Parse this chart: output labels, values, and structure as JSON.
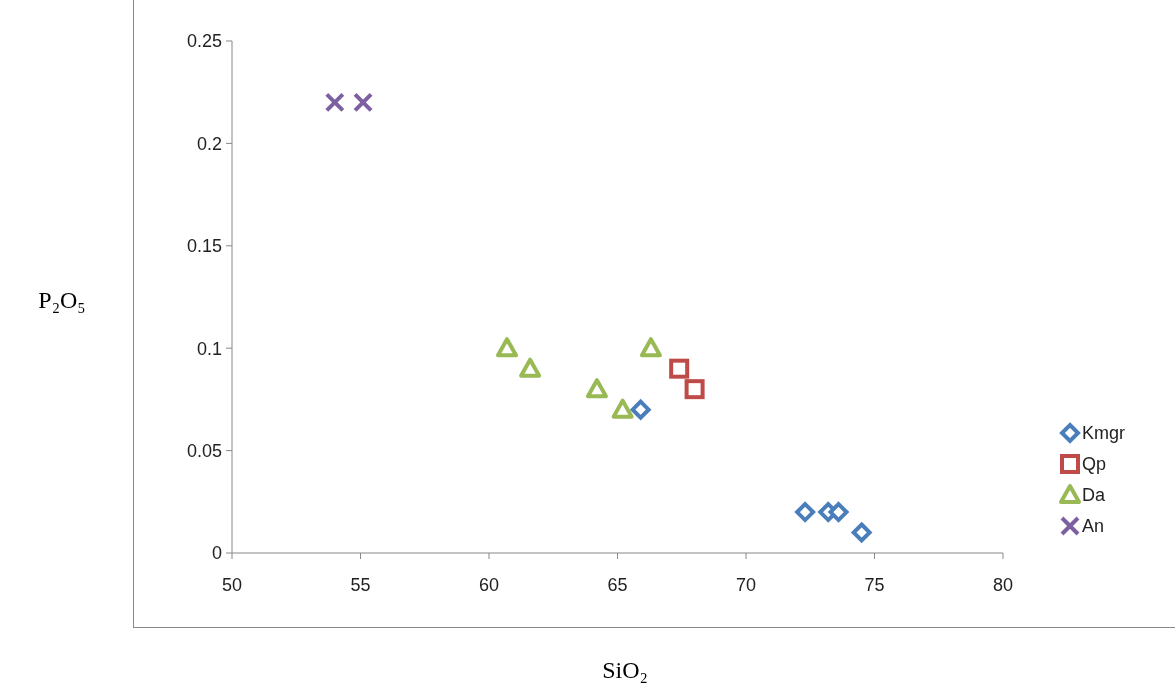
{
  "chart_data": {
    "type": "scatter",
    "xlabel": "SiO₂",
    "ylabel": "P₂O₅",
    "xlim": [
      50,
      80
    ],
    "xticks": [
      50,
      55,
      60,
      65,
      70,
      75,
      80
    ],
    "ylim": [
      0,
      0.25
    ],
    "yticks": [
      0,
      0.05,
      0.1,
      0.15,
      0.2,
      0.25
    ],
    "legend": "right",
    "grid": false,
    "series": [
      {
        "name": "Kmgr",
        "color": "#4a7ebb",
        "marker": "diamond",
        "x": [
          65.9,
          72.3,
          73.2,
          73.6,
          74.5
        ],
        "values": [
          0.07,
          0.02,
          0.02,
          0.02,
          0.01
        ]
      },
      {
        "name": "Qp",
        "color": "#be4b48",
        "marker": "square",
        "x": [
          67.4,
          68.0
        ],
        "values": [
          0.09,
          0.08
        ]
      },
      {
        "name": "Da",
        "color": "#98b954",
        "marker": "triangle",
        "x": [
          60.7,
          61.6,
          64.2,
          65.2,
          66.3
        ],
        "values": [
          0.1,
          0.09,
          0.08,
          0.07,
          0.1
        ]
      },
      {
        "name": "An",
        "color": "#7d60a0",
        "marker": "cross",
        "x": [
          54.0,
          55.1
        ],
        "values": [
          0.22,
          0.22
        ]
      }
    ]
  }
}
